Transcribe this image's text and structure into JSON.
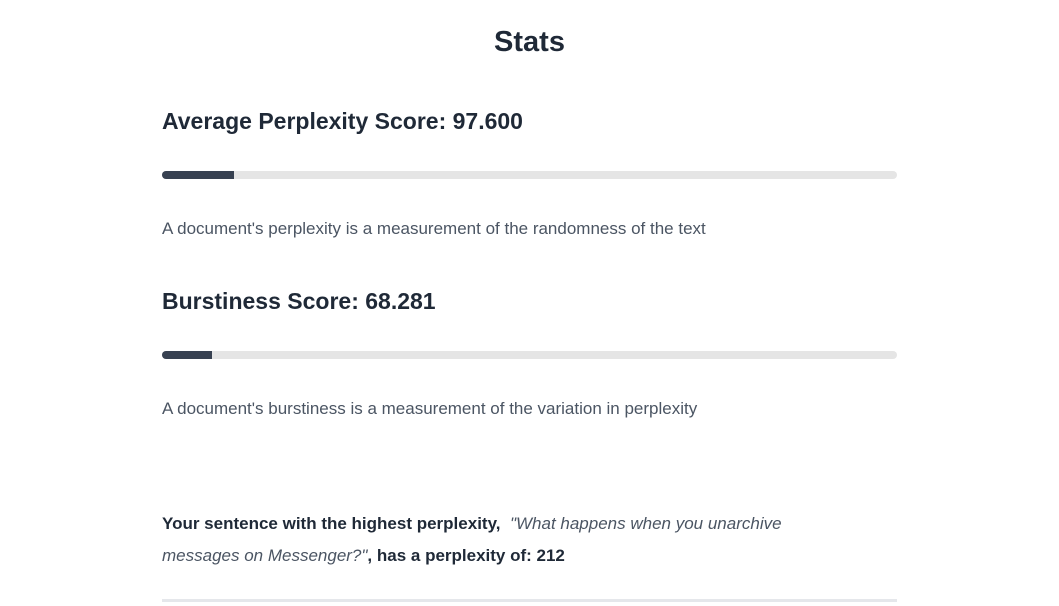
{
  "title": "Stats",
  "perplexity": {
    "heading": "Average Perplexity Score: 97.600",
    "progress_percent": 9.76,
    "description": "A document's perplexity is a measurement of the randomness of the text"
  },
  "burstiness": {
    "heading": "Burstiness Score: 68.281",
    "progress_percent": 6.83,
    "description": "A document's burstiness is a measurement of the variation in perplexity"
  },
  "highest": {
    "prefix": "Your sentence with the highest perplexity,",
    "sentence": "\"What happens when you unarchive messages on Messenger?\"",
    "suffix": ", has a perplexity of: 212"
  },
  "colors": {
    "bar_fill": "#374151",
    "bar_track": "#e5e5e5"
  }
}
